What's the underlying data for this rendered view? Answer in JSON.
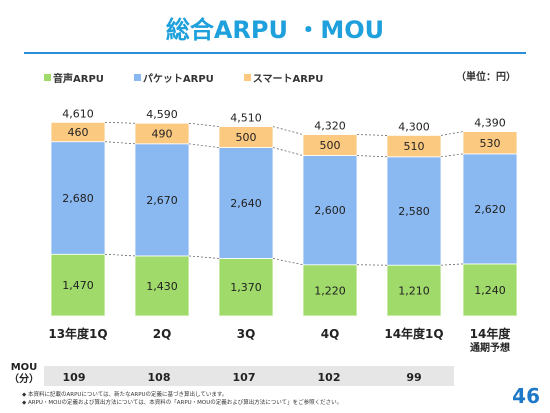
{
  "title": "総合ARPU ・MOU",
  "unit_label": "（単位：円）",
  "legend": [
    {
      "label": "音声ARPU",
      "color": "#9fda6a"
    },
    {
      "label": "パケットARPU",
      "color": "#8ab8f0"
    },
    {
      "label": "スマートARPU",
      "color": "#fcc981"
    }
  ],
  "chart_data": {
    "type": "bar",
    "stacked": true,
    "categories": [
      "13年度1Q",
      "2Q",
      "3Q",
      "4Q",
      "14年度1Q",
      "14年度\n通期予想"
    ],
    "series": [
      {
        "name": "音声ARPU",
        "values": [
          1470,
          1430,
          1370,
          1220,
          1210,
          1240
        ],
        "color": "#9fda6a"
      },
      {
        "name": "パケットARPU",
        "values": [
          2680,
          2670,
          2640,
          2600,
          2580,
          2620
        ],
        "color": "#8ab8f0"
      },
      {
        "name": "スマートARPU",
        "values": [
          460,
          490,
          500,
          500,
          510,
          530
        ],
        "color": "#fcc981"
      }
    ],
    "totals": [
      4610,
      4590,
      4510,
      4320,
      4300,
      4390
    ],
    "value_labels": {
      "voice": [
        "1,470",
        "1,430",
        "1,370",
        "1,220",
        "1,210",
        "1,240"
      ],
      "packet": [
        "2,680",
        "2,670",
        "2,640",
        "2,600",
        "2,580",
        "2,620"
      ],
      "smart": [
        "460",
        "490",
        "500",
        "500",
        "510",
        "530"
      ],
      "total": [
        "4,610",
        "4,590",
        "4,510",
        "4,320",
        "4,300",
        "4,390"
      ]
    },
    "category_labels": [
      [
        "13年度1Q"
      ],
      [
        "2Q"
      ],
      [
        "3Q"
      ],
      [
        "4Q"
      ],
      [
        "14年度1Q"
      ],
      [
        "14年度",
        "通期予想"
      ]
    ]
  },
  "mou": {
    "label_line1": "MOU",
    "label_line2": "（分）",
    "values": [
      "109",
      "108",
      "107",
      "102",
      "99"
    ]
  },
  "notes": [
    "◆ 本資料に記載のARPUについては、新たなARPUの定義に基づき算出しています。",
    "◆ ARPU・MOUの定義および算出方法については、本資料の「ARPU・MOUの定義および算出方法について」をご参照ください。"
  ],
  "page_number": "46"
}
